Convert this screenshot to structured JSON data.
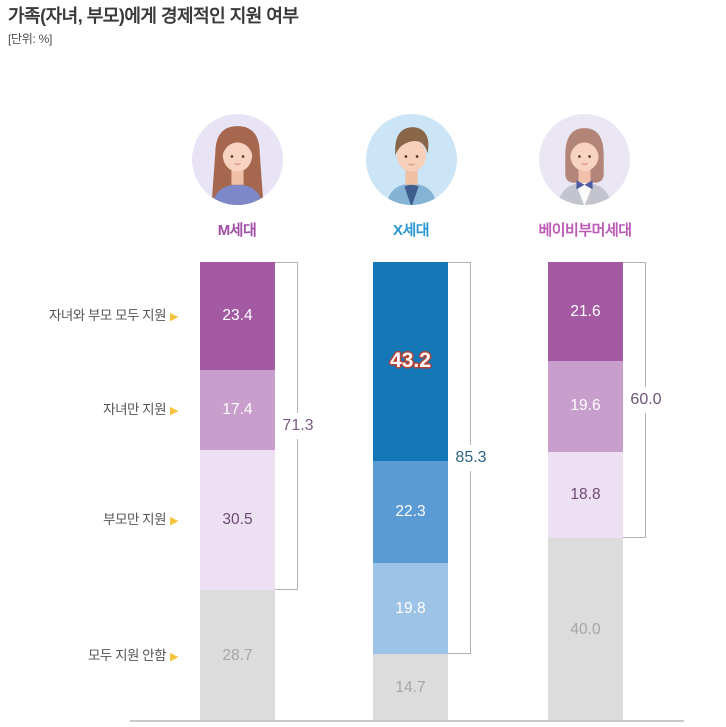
{
  "header": {
    "title": "가족(자녀, 부모)에게 경제적인 지원 여부",
    "unit": "[단위: %]"
  },
  "chart_data": {
    "type": "bar",
    "stacked": true,
    "orientation": "vertical",
    "unit": "%",
    "value_axis_max": 100,
    "grid": false,
    "categories": [
      "자녀와 부모 모두 지원",
      "자녀만 지원",
      "부모만 지원",
      "모두 지원 안함"
    ],
    "category_arrow_color": "#f6c33c",
    "bracket_line_color": "#b2b2b2",
    "baseline_color": "#c9c9c9",
    "series": [
      {
        "name": "M세대",
        "avatar_icon": "avatar-young-woman-long-hair-icon",
        "label_color": "#a04fa6",
        "values": [
          23.4,
          17.4,
          30.5,
          28.7
        ],
        "segment_colors": [
          "#a45aa3",
          "#c89ecd",
          "#ece0f2",
          "#dcdcdc"
        ],
        "value_text_colors": [
          "#ffffff",
          "#ffffff",
          "#6d4a74",
          "#a6a6a6"
        ],
        "support_total": 71.3,
        "support_total_color": "#7a5c85",
        "emphasis_index": -1,
        "emphasis_outline_color": null
      },
      {
        "name": "X세대",
        "avatar_icon": "avatar-middle-aged-man-icon",
        "label_color": "#2b97d3",
        "values": [
          43.2,
          22.3,
          19.8,
          14.7
        ],
        "segment_colors": [
          "#1377b5",
          "#5b9bd5",
          "#9dc3e6",
          "#dcdcdc"
        ],
        "value_text_colors": [
          "#ffffff",
          "#ffffff",
          "#ffffff",
          "#a6a6a6"
        ],
        "support_total": 85.3,
        "support_total_color": "#2d6484",
        "emphasis_index": 0,
        "emphasis_outline_color": "#b94136"
      },
      {
        "name": "베이비부머세대",
        "avatar_icon": "avatar-older-woman-bob-hair-icon",
        "label_color": "#bb5cb5",
        "values": [
          21.6,
          19.6,
          18.8,
          40.0
        ],
        "segment_colors": [
          "#a45aa3",
          "#c89ecd",
          "#ece0f2",
          "#dcdcdc"
        ],
        "value_text_colors": [
          "#ffffff",
          "#ffffff",
          "#6d4a74",
          "#a6a6a6"
        ],
        "support_total": 60.0,
        "support_total_color": "#6b5478",
        "emphasis_index": -1,
        "emphasis_outline_color": null
      }
    ]
  }
}
